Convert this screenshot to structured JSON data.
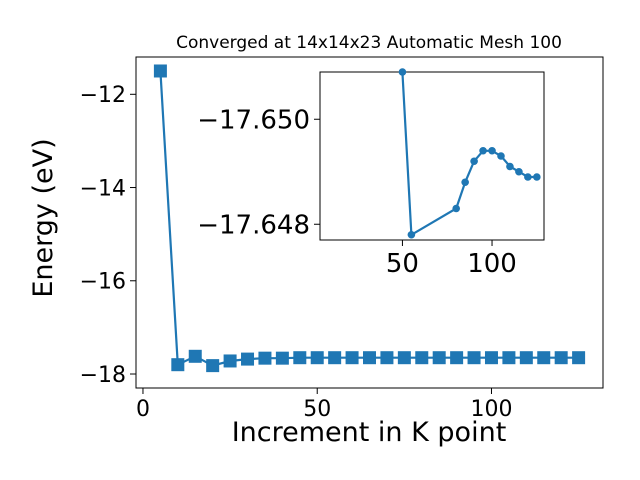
{
  "chart_data": [
    {
      "type": "line",
      "title": "Converged at 14x14x23 Automatic Mesh 100",
      "xlabel": "Increment in K point",
      "ylabel": "Energy (eV)",
      "xlim": [
        -2,
        132
      ],
      "ylim": [
        -18.3,
        -11.2
      ],
      "xticks": [
        0,
        50,
        100
      ],
      "xtick_labels": [
        "0",
        "50",
        "100"
      ],
      "yticks": [
        -12,
        -14,
        -16,
        -18
      ],
      "ytick_labels": [
        "−12",
        "−14",
        "−16",
        "−18"
      ],
      "grid": false,
      "series": [
        {
          "color": "#1f77b4",
          "marker": "square",
          "x": [
            5,
            10,
            15,
            20,
            25,
            30,
            35,
            40,
            45,
            50,
            55,
            60,
            65,
            70,
            75,
            80,
            85,
            90,
            95,
            100,
            105,
            110,
            115,
            120,
            125
          ],
          "y": [
            -11.5,
            -17.8,
            -17.62,
            -17.82,
            -17.72,
            -17.68,
            -17.66,
            -17.66,
            -17.65,
            -17.65,
            -17.65,
            -17.65,
            -17.65,
            -17.65,
            -17.65,
            -17.65,
            -17.65,
            -17.65,
            -17.65,
            -17.65,
            -17.65,
            -17.65,
            -17.65,
            -17.65,
            -17.65
          ]
        }
      ]
    },
    {
      "type": "line",
      "title": "",
      "xlim": [
        4,
        129
      ],
      "ylim": [
        -17.6477,
        -17.6509
      ],
      "xticks": [
        50,
        100
      ],
      "xtick_labels": [
        "50",
        "100"
      ],
      "yticks": [
        -17.65,
        -17.648
      ],
      "ytick_labels": [
        "−17.650",
        "−17.648"
      ],
      "grid": false,
      "series": [
        {
          "color": "#1f77b4",
          "marker": "circle",
          "x": [
            50,
            55,
            80,
            85,
            90,
            95,
            100,
            105,
            110,
            115,
            120,
            125
          ],
          "y": [
            -17.6509,
            -17.6478,
            -17.6483,
            -17.6488,
            -17.6492,
            -17.6494,
            -17.6494,
            -17.6493,
            -17.6491,
            -17.649,
            -17.6489,
            -17.6489
          ]
        }
      ]
    }
  ]
}
